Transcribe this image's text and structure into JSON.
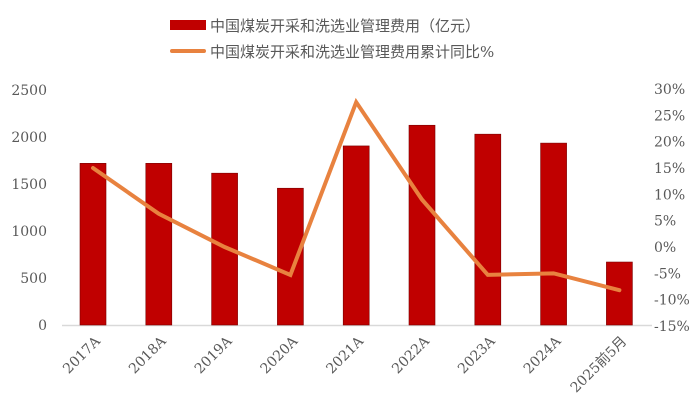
{
  "chart_data": {
    "type": "bar+line",
    "title": "",
    "categories": [
      "2017A",
      "2018A",
      "2019A",
      "2020A",
      "2021A",
      "2022A",
      "2023A",
      "2024A",
      "2025前5月"
    ],
    "series": [
      {
        "name": "中国煤炭开采和洗选业管理费用（亿元）",
        "type": "bar",
        "axis": "left",
        "color": "#C00000",
        "values": [
          1720,
          1720,
          1615,
          1455,
          1905,
          2125,
          2030,
          1935,
          670
        ]
      },
      {
        "name": "中国煤炭开采和洗选业管理费用累计同比%",
        "type": "line",
        "axis": "right",
        "color": "#E8823F",
        "values": [
          15.0,
          6.3,
          0.0,
          -5.3,
          27.5,
          9.0,
          -5.3,
          -5.0,
          -8.2
        ]
      }
    ],
    "left_axis": {
      "ylim": [
        0,
        2500
      ],
      "ticks": [
        "0",
        "500",
        "1000",
        "1500",
        "2000",
        "2500"
      ]
    },
    "right_axis": {
      "ylim": [
        -15,
        30
      ],
      "ticks": [
        "-15%",
        "-10%",
        "-5%",
        "0%",
        "5%",
        "10%",
        "15%",
        "20%",
        "25%",
        "30%"
      ]
    },
    "xlabel": "",
    "ylabel": "",
    "grid": false,
    "legend_position": "top"
  },
  "legend": {
    "bar_label": "中国煤炭开采和洗选业管理费用（亿元）",
    "line_label": "中国煤炭开采和洗选业管理费用累计同比%"
  }
}
